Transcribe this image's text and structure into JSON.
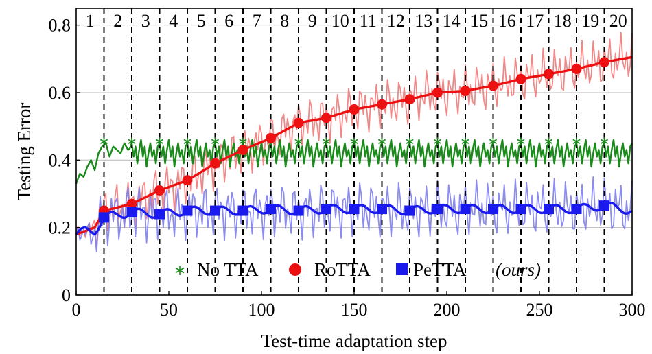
{
  "chart_data": {
    "type": "line",
    "xlabel": "Test-time adaptation step",
    "ylabel": "Testing Error",
    "xlim": [
      0,
      300
    ],
    "ylim": [
      0,
      0.85
    ],
    "xticks": [
      0,
      50,
      100,
      150,
      200,
      250,
      300
    ],
    "yticks": [
      0,
      0.2,
      0.4,
      0.6,
      0.8
    ],
    "ytick_labels": [
      "0",
      "0.2",
      "0.4",
      "0.6",
      "0.8"
    ],
    "grid": "horizontal",
    "legend_position": "bottom-center",
    "visit_boundaries": [
      15,
      30,
      45,
      60,
      75,
      90,
      105,
      120,
      135,
      150,
      165,
      180,
      195,
      210,
      225,
      240,
      255,
      270,
      285
    ],
    "visit_labels": [
      "1",
      "2",
      "3",
      "4",
      "5",
      "6",
      "7",
      "8",
      "9",
      "10",
      "11",
      "12",
      "13",
      "14",
      "15",
      "16",
      "17",
      "18",
      "19",
      "20"
    ],
    "series": [
      {
        "name": "No TTA",
        "marker": "asterisk",
        "color": "#1a8a1a",
        "x": [
          0,
          2,
          4,
          6,
          8,
          10,
          12,
          14,
          16,
          18,
          20,
          22,
          24,
          26,
          28,
          30
        ],
        "values": [
          0.33,
          0.36,
          0.35,
          0.38,
          0.4,
          0.37,
          0.42,
          0.44,
          0.45,
          0.41,
          0.44,
          0.43,
          0.42,
          0.45,
          0.43,
          0.44
        ],
        "cycle": [
          0.45,
          0.41,
          0.44,
          0.39,
          0.43,
          0.46,
          0.41,
          0.44,
          0.38,
          0.42,
          0.45,
          0.41,
          0.43,
          0.39,
          0.44
        ],
        "cycle_period": 15,
        "marker_y": 0.455
      },
      {
        "name": "RoTTA",
        "marker": "circle",
        "color": "#ee1111",
        "raw_color": "#f07b7b",
        "x": [
          0,
          10,
          15,
          30,
          45,
          60,
          75,
          90,
          105,
          120,
          135,
          150,
          165,
          180,
          195,
          210,
          225,
          240,
          255,
          270,
          285,
          300
        ],
        "values": [
          0.18,
          0.2,
          0.25,
          0.27,
          0.31,
          0.34,
          0.39,
          0.43,
          0.465,
          0.51,
          0.525,
          0.55,
          0.565,
          0.58,
          0.6,
          0.605,
          0.62,
          0.64,
          0.655,
          0.67,
          0.69,
          0.705
        ],
        "marker_x": [
          15,
          30,
          45,
          60,
          75,
          90,
          105,
          120,
          135,
          150,
          165,
          180,
          195,
          210,
          225,
          240,
          255,
          270,
          285
        ],
        "marker_y": [
          0.25,
          0.27,
          0.31,
          0.34,
          0.39,
          0.43,
          0.465,
          0.51,
          0.525,
          0.55,
          0.565,
          0.58,
          0.6,
          0.605,
          0.62,
          0.64,
          0.655,
          0.67,
          0.69
        ],
        "raw_spread": 0.08
      },
      {
        "name": "PeTTA",
        "name_note": "(ours)",
        "marker": "square",
        "color": "#1a1aee",
        "raw_color": "#8080ee",
        "x": [
          0,
          5,
          10,
          15,
          30,
          45,
          60,
          75,
          90,
          105,
          120,
          135,
          150,
          165,
          180,
          195,
          210,
          225,
          240,
          255,
          270,
          285,
          300
        ],
        "values": [
          0.18,
          0.19,
          0.19,
          0.23,
          0.245,
          0.24,
          0.25,
          0.25,
          0.25,
          0.255,
          0.25,
          0.255,
          0.255,
          0.255,
          0.25,
          0.255,
          0.255,
          0.255,
          0.255,
          0.255,
          0.255,
          0.265,
          0.25
        ],
        "marker_x": [
          15,
          30,
          45,
          60,
          75,
          90,
          105,
          120,
          135,
          150,
          165,
          180,
          195,
          210,
          225,
          240,
          255,
          270,
          285
        ],
        "marker_y": [
          0.23,
          0.245,
          0.24,
          0.25,
          0.25,
          0.25,
          0.255,
          0.25,
          0.255,
          0.255,
          0.255,
          0.25,
          0.255,
          0.255,
          0.255,
          0.255,
          0.255,
          0.255,
          0.265
        ],
        "raw_spread": 0.09
      }
    ]
  }
}
